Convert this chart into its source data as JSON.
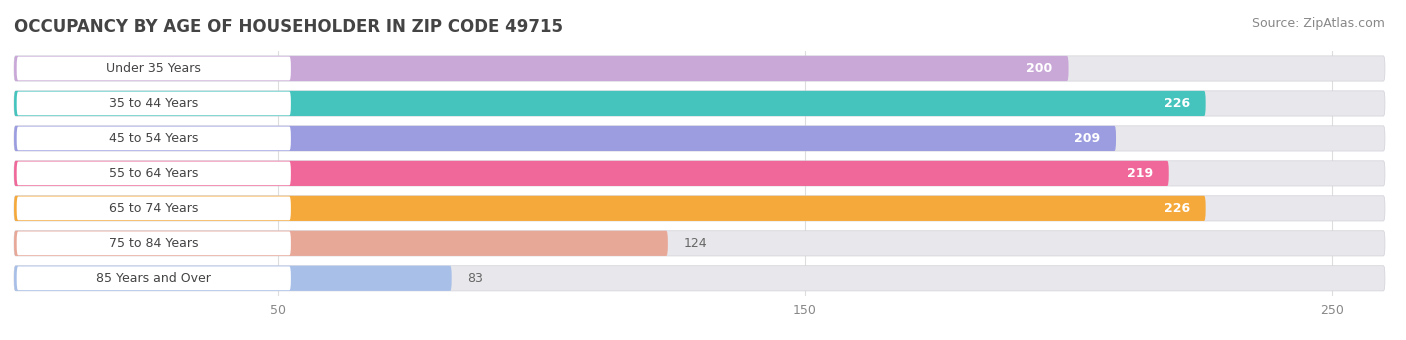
{
  "title": "OCCUPANCY BY AGE OF HOUSEHOLDER IN ZIP CODE 49715",
  "source": "Source: ZipAtlas.com",
  "categories": [
    "Under 35 Years",
    "35 to 44 Years",
    "45 to 54 Years",
    "55 to 64 Years",
    "65 to 74 Years",
    "75 to 84 Years",
    "85 Years and Over"
  ],
  "values": [
    200,
    226,
    209,
    219,
    226,
    124,
    83
  ],
  "bar_colors": [
    "#c9a8d8",
    "#45c4be",
    "#9b9de0",
    "#f06899",
    "#f5a93a",
    "#e8a898",
    "#a8bfe8"
  ],
  "xlim_data": [
    0,
    260
  ],
  "xticks": [
    50,
    150,
    250
  ],
  "bar_bg_color": "#e8e8ec",
  "title_fontsize": 12,
  "source_fontsize": 9,
  "label_fontsize": 9,
  "value_fontsize": 9,
  "bar_height": 0.72,
  "fig_width": 14.06,
  "fig_height": 3.4,
  "label_badge_color": "#ffffff",
  "label_text_color": "#444444",
  "value_text_color_inside": "#ffffff",
  "value_text_color_outside": "#666666"
}
